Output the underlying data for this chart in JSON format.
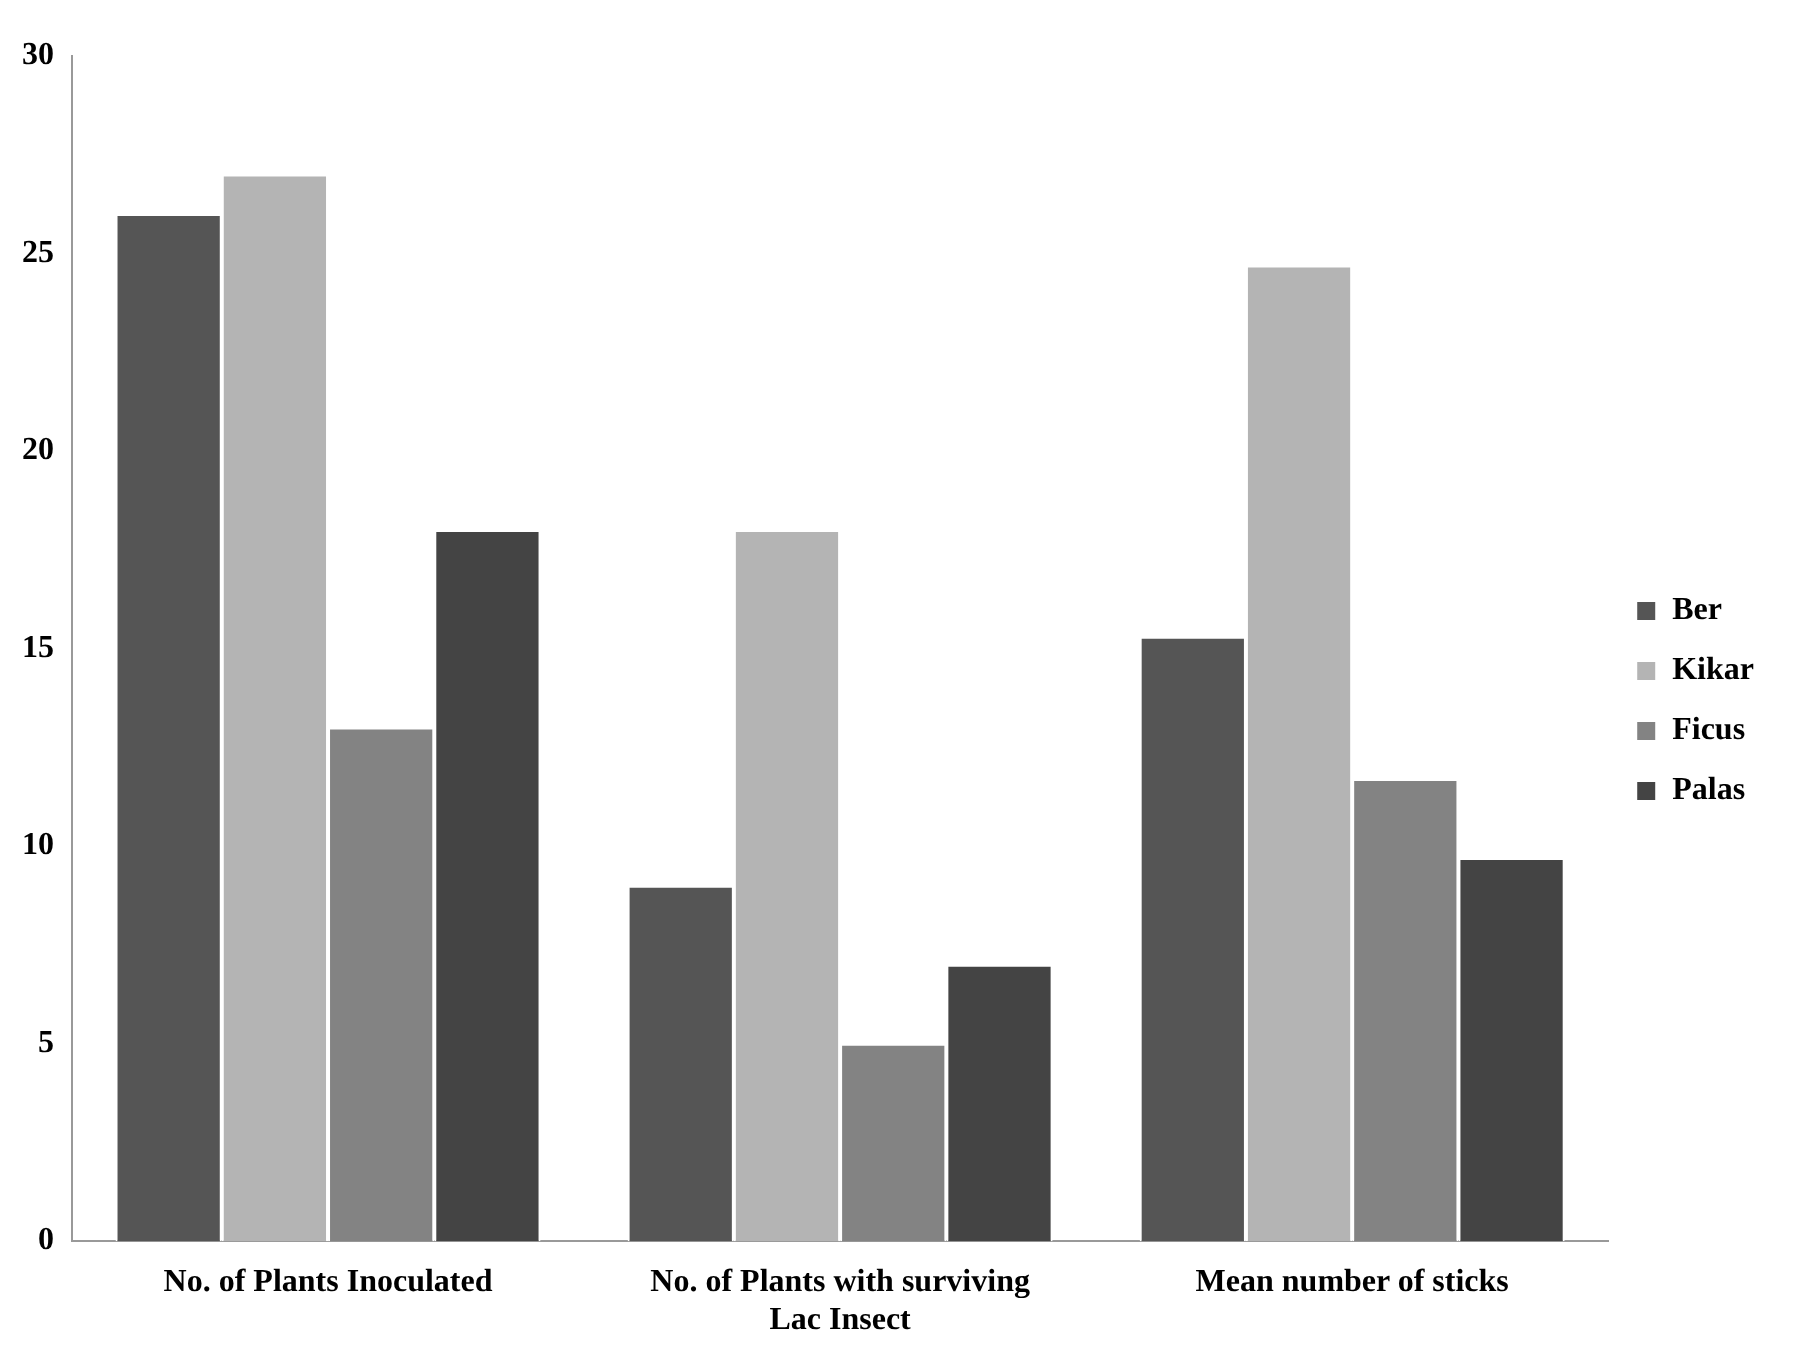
{
  "chart_data": {
    "type": "bar",
    "categories": [
      "No. of Plants Inoculated",
      "No. of Plants with surviving Lac Insect",
      "Mean number of sticks"
    ],
    "series": [
      {
        "name": "Ber",
        "color": "#555555",
        "values": [
          26,
          9,
          15.3
        ]
      },
      {
        "name": "Kikar",
        "color": "#b4b4b4",
        "values": [
          27,
          18,
          24.7
        ]
      },
      {
        "name": "Ficus",
        "color": "#838383",
        "values": [
          13,
          5,
          11.7
        ]
      },
      {
        "name": "Palas",
        "color": "#444444",
        "values": [
          18,
          7,
          9.7
        ]
      }
    ],
    "ylim": [
      0,
      30
    ],
    "yticks": [
      0,
      5,
      10,
      15,
      20,
      25,
      30
    ],
    "grid": false,
    "legend": "right"
  }
}
